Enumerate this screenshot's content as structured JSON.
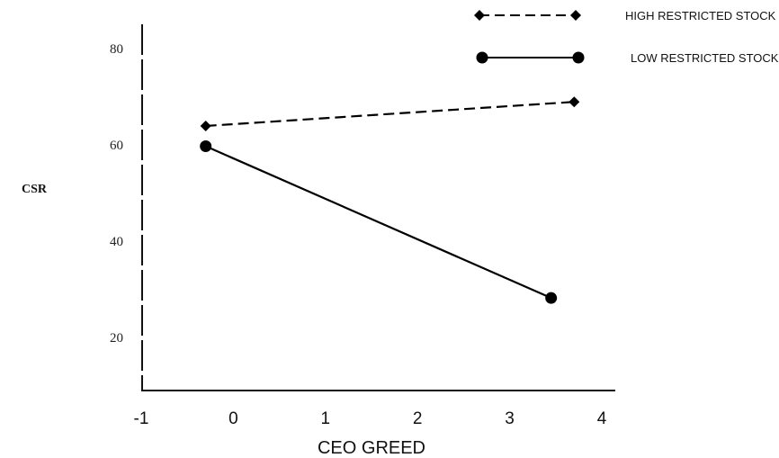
{
  "chart_data": {
    "type": "line",
    "title": "",
    "xlabel": "CEO GREED",
    "ylabel": "CSR",
    "xlim": [
      -1,
      4
    ],
    "ylim": [
      9,
      85
    ],
    "x_ticks": [
      -1,
      0,
      1,
      2,
      3,
      4
    ],
    "y_ticks": [
      20,
      40,
      60,
      80
    ],
    "grid": false,
    "legend_position": "top-right",
    "series": [
      {
        "name": "HIGH RESTRICTED STOCK",
        "line_style": "dashed",
        "marker": "diamond",
        "color": "#000000",
        "x": [
          -0.3,
          3.7
        ],
        "y": [
          63.9,
          68.9
        ]
      },
      {
        "name": "LOW RESTRICTED STOCK",
        "line_style": "solid",
        "marker": "circle",
        "color": "#000000",
        "x": [
          -0.3,
          3.45
        ],
        "y": [
          59.7,
          28.2
        ]
      }
    ]
  }
}
